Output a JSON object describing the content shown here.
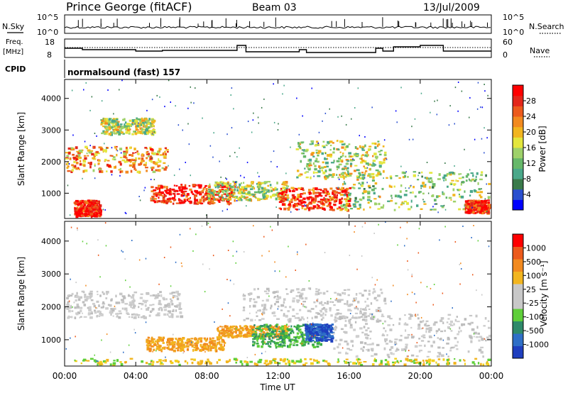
{
  "header": {
    "title": "Prince George (fitACF)",
    "beam": "Beam 03",
    "date": "13/Jul/2009"
  },
  "top_panels": {
    "nsky_label": "N.Sky",
    "nsky_ticks": [
      "10^5",
      "10^0"
    ],
    "nsearch_label": "N.Search",
    "nsearch_ticks": [
      "10^5",
      "10^0"
    ],
    "freq_label_1": "Freq.",
    "freq_label_2": "[MHz]",
    "freq_ticks": [
      "18",
      "8"
    ],
    "nave_label": "Nave",
    "nave_ticks": [
      "60",
      "0"
    ],
    "cpid_label": "CPID",
    "cpid_text": "normalsound (fast) 157"
  },
  "chart_data": [
    {
      "type": "heatmap",
      "name": "power-panel",
      "ylabel": "Slant Range [km]",
      "yticks": [
        "4000",
        "3000",
        "2000",
        "1000"
      ],
      "ylim": [
        200,
        4600
      ],
      "xlim": [
        0,
        24
      ],
      "colorbar": {
        "label": "Power [dB]",
        "ticks": [
          "28",
          "24",
          "20",
          "16",
          "12",
          "8",
          "4"
        ],
        "colors": [
          "#0000ff",
          "#2a4fcf",
          "#3a7a4a",
          "#4aa88a",
          "#66b86a",
          "#9ed16a",
          "#e3e63d",
          "#f2b51f",
          "#f28a1f",
          "#ec5a1c",
          "#e3261a",
          "#ff0000"
        ]
      },
      "features": [
        {
          "t0": 0.0,
          "t1": 5.8,
          "r0": 1700,
          "r1": 2500,
          "level": 0.7
        },
        {
          "t0": 2.0,
          "t1": 5.0,
          "r0": 2900,
          "r1": 3400,
          "level": 0.5
        },
        {
          "t0": 4.8,
          "t1": 9.5,
          "r0": 700,
          "r1": 1300,
          "level": 0.9
        },
        {
          "t0": 0.5,
          "t1": 2.0,
          "r0": 300,
          "r1": 800,
          "level": 0.95
        },
        {
          "t0": 8.0,
          "t1": 12.5,
          "r0": 800,
          "r1": 1400,
          "level": 0.5
        },
        {
          "t0": 12.0,
          "t1": 16.0,
          "r0": 500,
          "r1": 1200,
          "level": 0.85
        },
        {
          "t0": 15.5,
          "t1": 24.0,
          "r0": 500,
          "r1": 1700,
          "level": 0.45
        },
        {
          "t0": 13.0,
          "t1": 18.0,
          "r0": 1500,
          "r1": 2700,
          "level": 0.5
        },
        {
          "t0": 22.5,
          "t1": 24.0,
          "r0": 400,
          "r1": 800,
          "level": 0.9
        }
      ]
    },
    {
      "type": "heatmap",
      "name": "velocity-panel",
      "ylabel": "Slant Range [km]",
      "xlabel": "Time UT",
      "yticks": [
        "4000",
        "3000",
        "2000",
        "1000"
      ],
      "ylim": [
        200,
        4600
      ],
      "xlim": [
        0,
        24
      ],
      "xticks": [
        "00:00",
        "04:00",
        "08:00",
        "12:00",
        "16:00",
        "20:00",
        "00:00"
      ],
      "colorbar": {
        "label": "Velocity [m s⁻¹]",
        "ticks": [
          "1000",
          "500",
          "100",
          "25",
          "-25",
          "-100",
          "-500",
          "-1000"
        ],
        "colors": [
          "#1f3fbf",
          "#2f6fc7",
          "#2f8a6a",
          "#5fcf3a",
          "#c8c8c8",
          "#c8c8c8",
          "#f2b51f",
          "#f28a1f",
          "#ec5a1c",
          "#ff0000"
        ]
      },
      "features": [
        {
          "t0": 0.0,
          "t1": 6.5,
          "r0": 1700,
          "r1": 2500,
          "level": "gray"
        },
        {
          "t0": 4.5,
          "t1": 9.0,
          "r0": 700,
          "r1": 1100,
          "level": "orange"
        },
        {
          "t0": 8.5,
          "t1": 12.5,
          "r0": 1100,
          "r1": 1450,
          "level": "orange"
        },
        {
          "t0": 10.5,
          "t1": 14.5,
          "r0": 800,
          "r1": 1500,
          "level": "green"
        },
        {
          "t0": 13.5,
          "t1": 15.0,
          "r0": 1000,
          "r1": 1500,
          "level": "blue"
        },
        {
          "t0": 15.0,
          "t1": 24.0,
          "r0": 500,
          "r1": 1800,
          "level": "gray"
        },
        {
          "t0": 10.0,
          "t1": 18.0,
          "r0": 1600,
          "r1": 2600,
          "level": "gray"
        },
        {
          "t0": 0.5,
          "t1": 24.0,
          "r0": 250,
          "r1": 450,
          "level": "yellow"
        }
      ]
    }
  ]
}
